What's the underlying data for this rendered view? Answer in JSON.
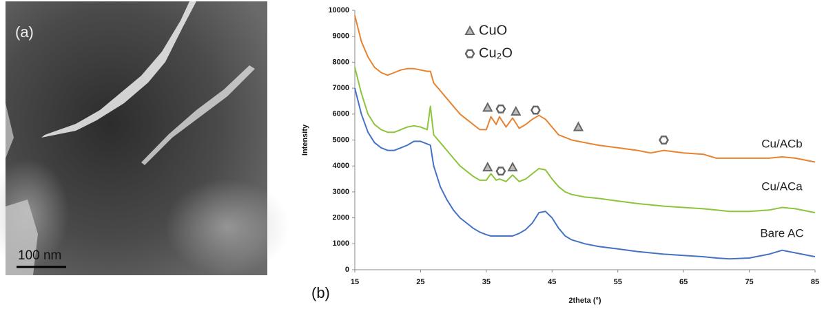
{
  "figure": {
    "panel_a_label": "(a)",
    "scale_label": "100 nm",
    "panel_b_label": "(b)"
  },
  "chart_data": {
    "type": "line",
    "x_label": "2theta (°)",
    "y_label": "Intensity",
    "xlim": [
      15,
      85
    ],
    "xticks": [
      15,
      25,
      35,
      45,
      55,
      65,
      75,
      85
    ],
    "ylim": [
      0,
      10000
    ],
    "yticks": [
      0,
      1000,
      2000,
      3000,
      4000,
      5000,
      6000,
      7000,
      8000,
      9000,
      10000
    ],
    "grid": false,
    "x": [
      15,
      16,
      17,
      18,
      19,
      20,
      21,
      22,
      23,
      24,
      25,
      26,
      26.5,
      27,
      28,
      29,
      30,
      31,
      32,
      33,
      34,
      35,
      35.7,
      36.5,
      37,
      38,
      39,
      40,
      41,
      42,
      43,
      44,
      45,
      46,
      47,
      48,
      50,
      52,
      55,
      58,
      60,
      62,
      65,
      68,
      70,
      72,
      75,
      78,
      80,
      82,
      85
    ],
    "series": [
      {
        "name": "Cu/ACb",
        "color": "#e8822e",
        "values": [
          9800,
          8800,
          8200,
          7800,
          7600,
          7500,
          7600,
          7700,
          7750,
          7750,
          7700,
          7650,
          7650,
          7200,
          6900,
          6600,
          6300,
          6000,
          5800,
          5600,
          5400,
          5400,
          5900,
          5600,
          5900,
          5500,
          5850,
          5450,
          5600,
          5800,
          5950,
          5800,
          5500,
          5200,
          5100,
          5000,
          4900,
          4800,
          4700,
          4600,
          4500,
          4600,
          4500,
          4450,
          4300,
          4300,
          4300,
          4300,
          4350,
          4300,
          4150
        ]
      },
      {
        "name": "Cu/ACa",
        "color": "#8cc43c",
        "values": [
          7800,
          6800,
          6000,
          5600,
          5400,
          5300,
          5300,
          5400,
          5500,
          5550,
          5500,
          5400,
          6300,
          5200,
          4900,
          4600,
          4300,
          4000,
          3800,
          3600,
          3450,
          3450,
          3700,
          3450,
          3500,
          3400,
          3650,
          3400,
          3500,
          3700,
          3900,
          3850,
          3500,
          3200,
          3000,
          2900,
          2800,
          2750,
          2650,
          2550,
          2500,
          2450,
          2400,
          2350,
          2300,
          2250,
          2250,
          2300,
          2400,
          2350,
          2200
        ]
      },
      {
        "name": "Bare AC",
        "color": "#4472c4",
        "values": [
          7000,
          6000,
          5300,
          4900,
          4700,
          4600,
          4600,
          4700,
          4800,
          4950,
          4950,
          4850,
          4800,
          4000,
          3200,
          2700,
          2300,
          2000,
          1800,
          1600,
          1450,
          1350,
          1300,
          1300,
          1300,
          1300,
          1300,
          1400,
          1550,
          1800,
          2200,
          2250,
          2000,
          1600,
          1300,
          1150,
          1000,
          900,
          800,
          700,
          650,
          600,
          550,
          500,
          450,
          420,
          450,
          600,
          750,
          650,
          500
        ]
      }
    ],
    "phases": [
      {
        "name": "CuO",
        "symbol": "triangle"
      },
      {
        "name": "Cu₂O",
        "symbol": "hexagon"
      }
    ],
    "peak_markers": [
      {
        "phase": 0,
        "x": 35.2,
        "y": 6250
      },
      {
        "phase": 1,
        "x": 37.2,
        "y": 6200
      },
      {
        "phase": 0,
        "x": 39.5,
        "y": 6100
      },
      {
        "phase": 1,
        "x": 42.5,
        "y": 6150
      },
      {
        "phase": 0,
        "x": 49,
        "y": 5500
      },
      {
        "phase": 1,
        "x": 62,
        "y": 5000
      },
      {
        "phase": 0,
        "x": 35.2,
        "y": 3950
      },
      {
        "phase": 1,
        "x": 37.2,
        "y": 3800
      },
      {
        "phase": 0,
        "x": 39,
        "y": 3950
      }
    ]
  }
}
